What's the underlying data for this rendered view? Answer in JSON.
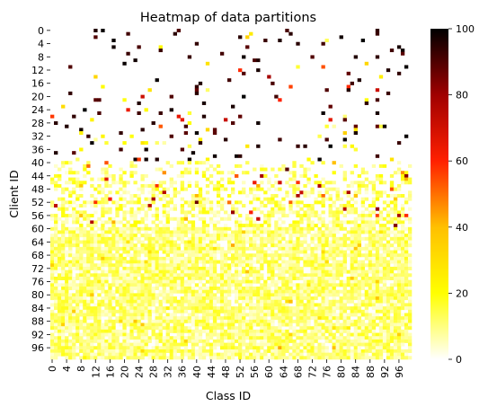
{
  "chart_data": {
    "type": "heatmap",
    "title": "Heatmap of data partitions",
    "xlabel": "Class ID",
    "ylabel": "Client ID",
    "rows": 100,
    "cols": 100,
    "x_tick_labels": [
      "0",
      "4",
      "8",
      "12",
      "16",
      "20",
      "24",
      "28",
      "32",
      "36",
      "40",
      "44",
      "48",
      "52",
      "56",
      "60",
      "64",
      "68",
      "72",
      "76",
      "80",
      "84",
      "88",
      "92",
      "96"
    ],
    "y_tick_labels": [
      "0",
      "4",
      "8",
      "12",
      "16",
      "20",
      "24",
      "28",
      "32",
      "36",
      "40",
      "44",
      "48",
      "52",
      "56",
      "60",
      "64",
      "68",
      "72",
      "76",
      "80",
      "84",
      "88",
      "92",
      "96"
    ],
    "colorbar": {
      "min": 0,
      "max": 100,
      "tick_labels": [
        "0",
        "20",
        "40",
        "60",
        "80",
        "100"
      ],
      "colormap": "hot_r",
      "colors": [
        "#ffffff",
        "#ffff00",
        "#ff8000",
        "#ff0000",
        "#800000",
        "#000000"
      ]
    },
    "pattern_summary": {
      "rows_0_39": "sparse: each client holds a few classes, most cells 0; a handful of cells near 90-100 (black) with occasional mid values",
      "rows_40_59": "transition: many small values 5-20, scattered cells 40-90",
      "rows_60_99": "dense: most cells 3-20 with occasional values up to ~45"
    },
    "values": null
  }
}
